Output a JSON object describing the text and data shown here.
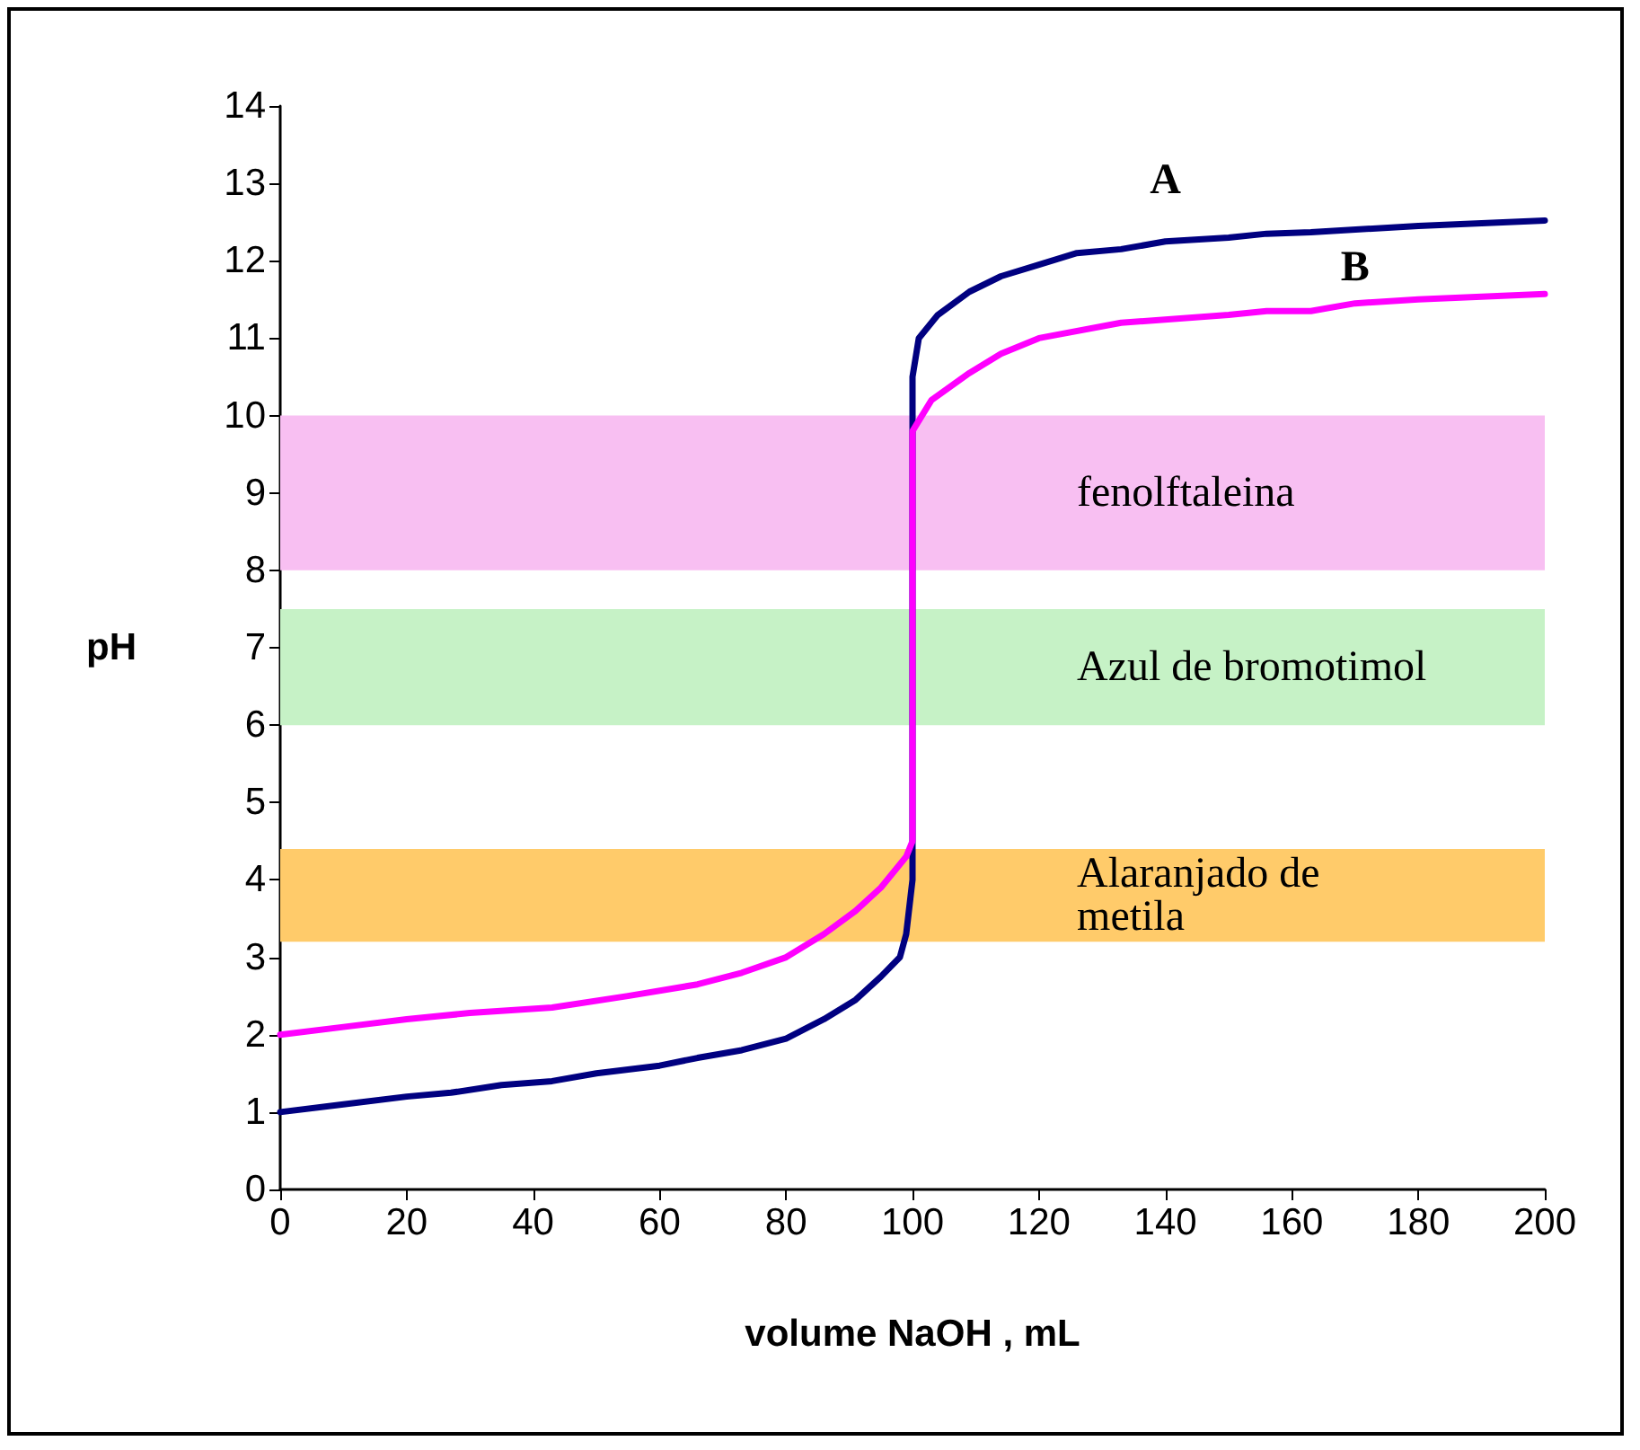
{
  "chart_data": {
    "type": "line",
    "xlabel": "volume NaOH , mL",
    "ylabel": "pH",
    "xlim": [
      0,
      200
    ],
    "xticks": [
      0,
      20,
      40,
      60,
      80,
      100,
      120,
      140,
      160,
      180,
      200
    ],
    "ylim": [
      0,
      14
    ],
    "yticks": [
      0,
      1,
      2,
      3,
      4,
      5,
      6,
      7,
      8,
      9,
      10,
      11,
      12,
      13,
      14
    ],
    "grid": false,
    "marker": "none",
    "line_style": "solid",
    "series": [
      {
        "name": "A",
        "color": "#000080",
        "x": [
          0,
          10,
          20,
          27,
          35,
          43,
          50,
          60,
          66,
          73,
          80,
          86,
          91,
          95,
          98,
          99,
          100,
          100,
          101,
          104,
          109,
          114,
          120,
          126,
          133,
          140,
          150,
          156,
          163,
          180,
          200
        ],
        "values": [
          1,
          1.1,
          1.2,
          1.25,
          1.35,
          1.4,
          1.5,
          1.6,
          1.7,
          1.8,
          1.95,
          2.2,
          2.45,
          2.75,
          3,
          3.3,
          4,
          10.5,
          11,
          11.3,
          11.6,
          11.8,
          11.95,
          12.1,
          12.15,
          12.25,
          12.3,
          12.35,
          12.37,
          12.45,
          12.52
        ]
      },
      {
        "name": "B",
        "color": "#ff00ff",
        "x": [
          0,
          10,
          20,
          30,
          43,
          55,
          66,
          73,
          80,
          86,
          91,
          95,
          99,
          100,
          100,
          103,
          109,
          114,
          120,
          133,
          150,
          156,
          163,
          170,
          180,
          200
        ],
        "values": [
          2,
          2.1,
          2.2,
          2.28,
          2.35,
          2.5,
          2.65,
          2.8,
          3,
          3.3,
          3.6,
          3.9,
          4.3,
          4.5,
          9.8,
          10.2,
          10.55,
          10.8,
          11,
          11.2,
          11.3,
          11.35,
          11.35,
          11.45,
          11.5,
          11.57
        ]
      }
    ],
    "bands": [
      {
        "axis": "y",
        "from": 8,
        "to": 10,
        "label": "fenolftaleina",
        "color": "#f8bff2"
      },
      {
        "axis": "y",
        "from": 6,
        "to": 7.5,
        "label": "Azul de bromotimol",
        "color": "#c6f2c6"
      },
      {
        "axis": "y",
        "from": 3.2,
        "to": 4.4,
        "label": "Alaranjado de metila",
        "color": "#ffcb6a"
      }
    ]
  }
}
